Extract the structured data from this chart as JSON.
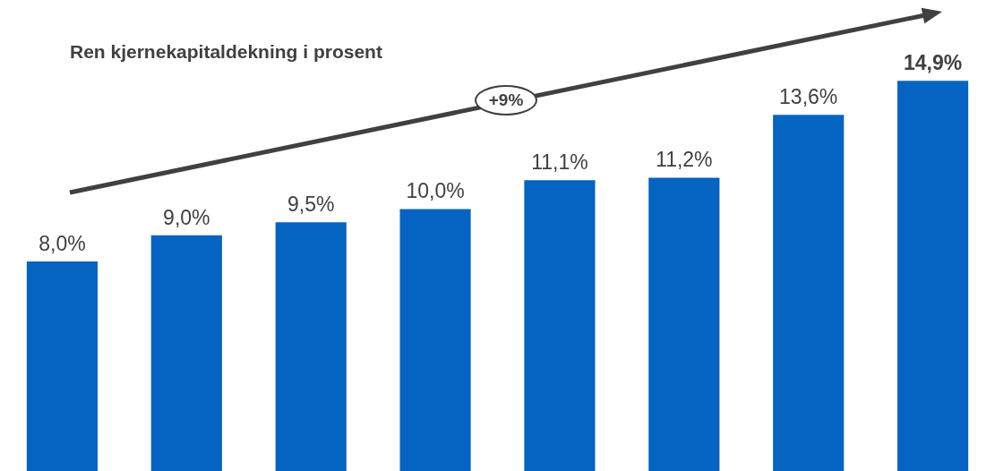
{
  "chart_data": {
    "type": "bar",
    "title": "Ren kjernekapitaldekning i prosent",
    "categories": [
      null,
      null,
      null,
      null,
      null,
      null,
      null,
      null
    ],
    "values": [
      8.0,
      9.0,
      9.5,
      10.0,
      11.1,
      11.2,
      13.6,
      14.9
    ],
    "value_labels": [
      "8,0%",
      "9,0%",
      "9,5%",
      "10,0%",
      "11,1%",
      "11,2%",
      "13,6%",
      "14,9%"
    ],
    "color": "#0563c1",
    "annotations": [
      "+9%"
    ]
  }
}
